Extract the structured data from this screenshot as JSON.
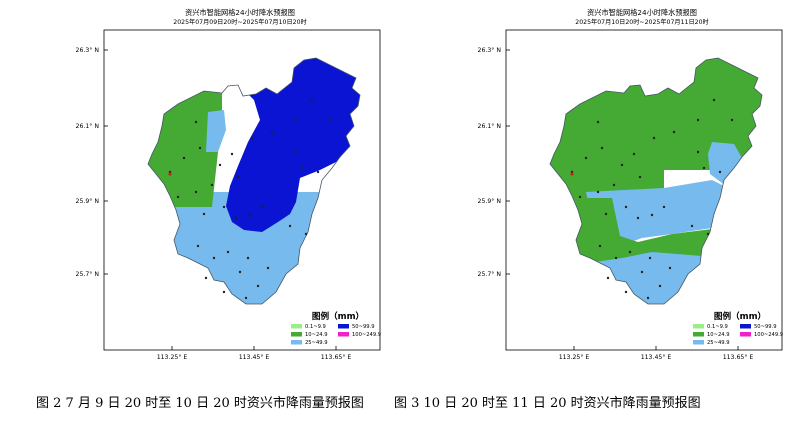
{
  "colors": {
    "light_green": "#99ee88",
    "green": "#44aa33",
    "light_blue": "#77bbee",
    "blue": "#0a14d2",
    "magenta": "#ee22cc",
    "frame": "#000000"
  },
  "axes": {
    "lat_labels": [
      "26.3° N",
      "26.1° N",
      "25.9° N",
      "25.7° N"
    ],
    "lon_labels": [
      "113.25° E",
      "113.45° E",
      "113.65° E"
    ]
  },
  "legend": {
    "title": "图例（mm）",
    "items": [
      {
        "label": "0.1~9.9",
        "color": "#99ee88"
      },
      {
        "label": "50~99.9",
        "color": "#0a14d2"
      },
      {
        "label": "10~24.9",
        "color": "#44aa33"
      },
      {
        "label": "100~249.9",
        "color": "#ee22cc"
      },
      {
        "label": "25~49.9",
        "color": "#77bbee"
      }
    ]
  },
  "maps": [
    {
      "title_line1": "资兴市智能网格24小时降水预报图",
      "title_line2": "2025年07月09日20时~2025年07月10日20时"
    },
    {
      "title_line1": "资兴市智能网格24小时降水预报图",
      "title_line2": "2025年07月10日20时~2025年07月11日20时"
    }
  ],
  "captions": {
    "left": "图 2 7 月 9 日 20 时至 10 日 20 时资兴市降雨量预报图",
    "right": "图 3 10 日 20 时至 11 日 20 时资兴市降雨量预报图"
  }
}
